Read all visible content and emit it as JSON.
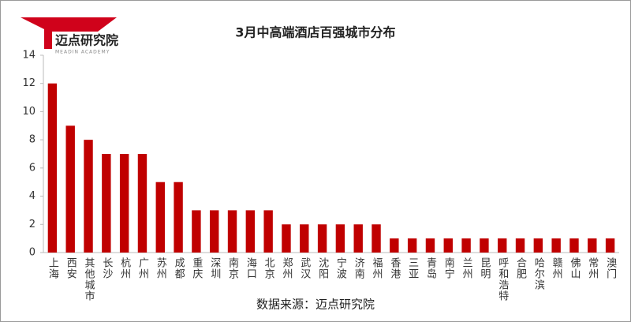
{
  "logo": {
    "name": "迈点研究院",
    "subtitle": "MEADIN ACADEMY"
  },
  "chart_data": {
    "type": "bar",
    "title": "3月中高端酒店百强城市分布",
    "categories": [
      "上海",
      "西安",
      "其他城市",
      "长沙",
      "杭州",
      "广州",
      "苏州",
      "成都",
      "重庆",
      "深圳",
      "南京",
      "海口",
      "北京",
      "郑州",
      "武汉",
      "沈阳",
      "宁波",
      "济南",
      "福州",
      "香港",
      "三亚",
      "青岛",
      "南宁",
      "兰州",
      "昆明",
      "呼和浩特",
      "合肥",
      "哈尔滨",
      "赣州",
      "佛山",
      "常州",
      "澳门"
    ],
    "values": [
      12,
      9,
      8,
      7,
      7,
      7,
      5,
      5,
      3,
      3,
      3,
      3,
      3,
      2,
      2,
      2,
      2,
      2,
      2,
      1,
      1,
      1,
      1,
      1,
      1,
      1,
      1,
      1,
      1,
      1,
      1,
      1
    ],
    "color": "#c00000",
    "ylim": [
      0,
      14
    ],
    "yticks": [
      0,
      2,
      4,
      6,
      8,
      10,
      12,
      14
    ],
    "grid": false,
    "source": "数据来源：迈点研究院"
  }
}
